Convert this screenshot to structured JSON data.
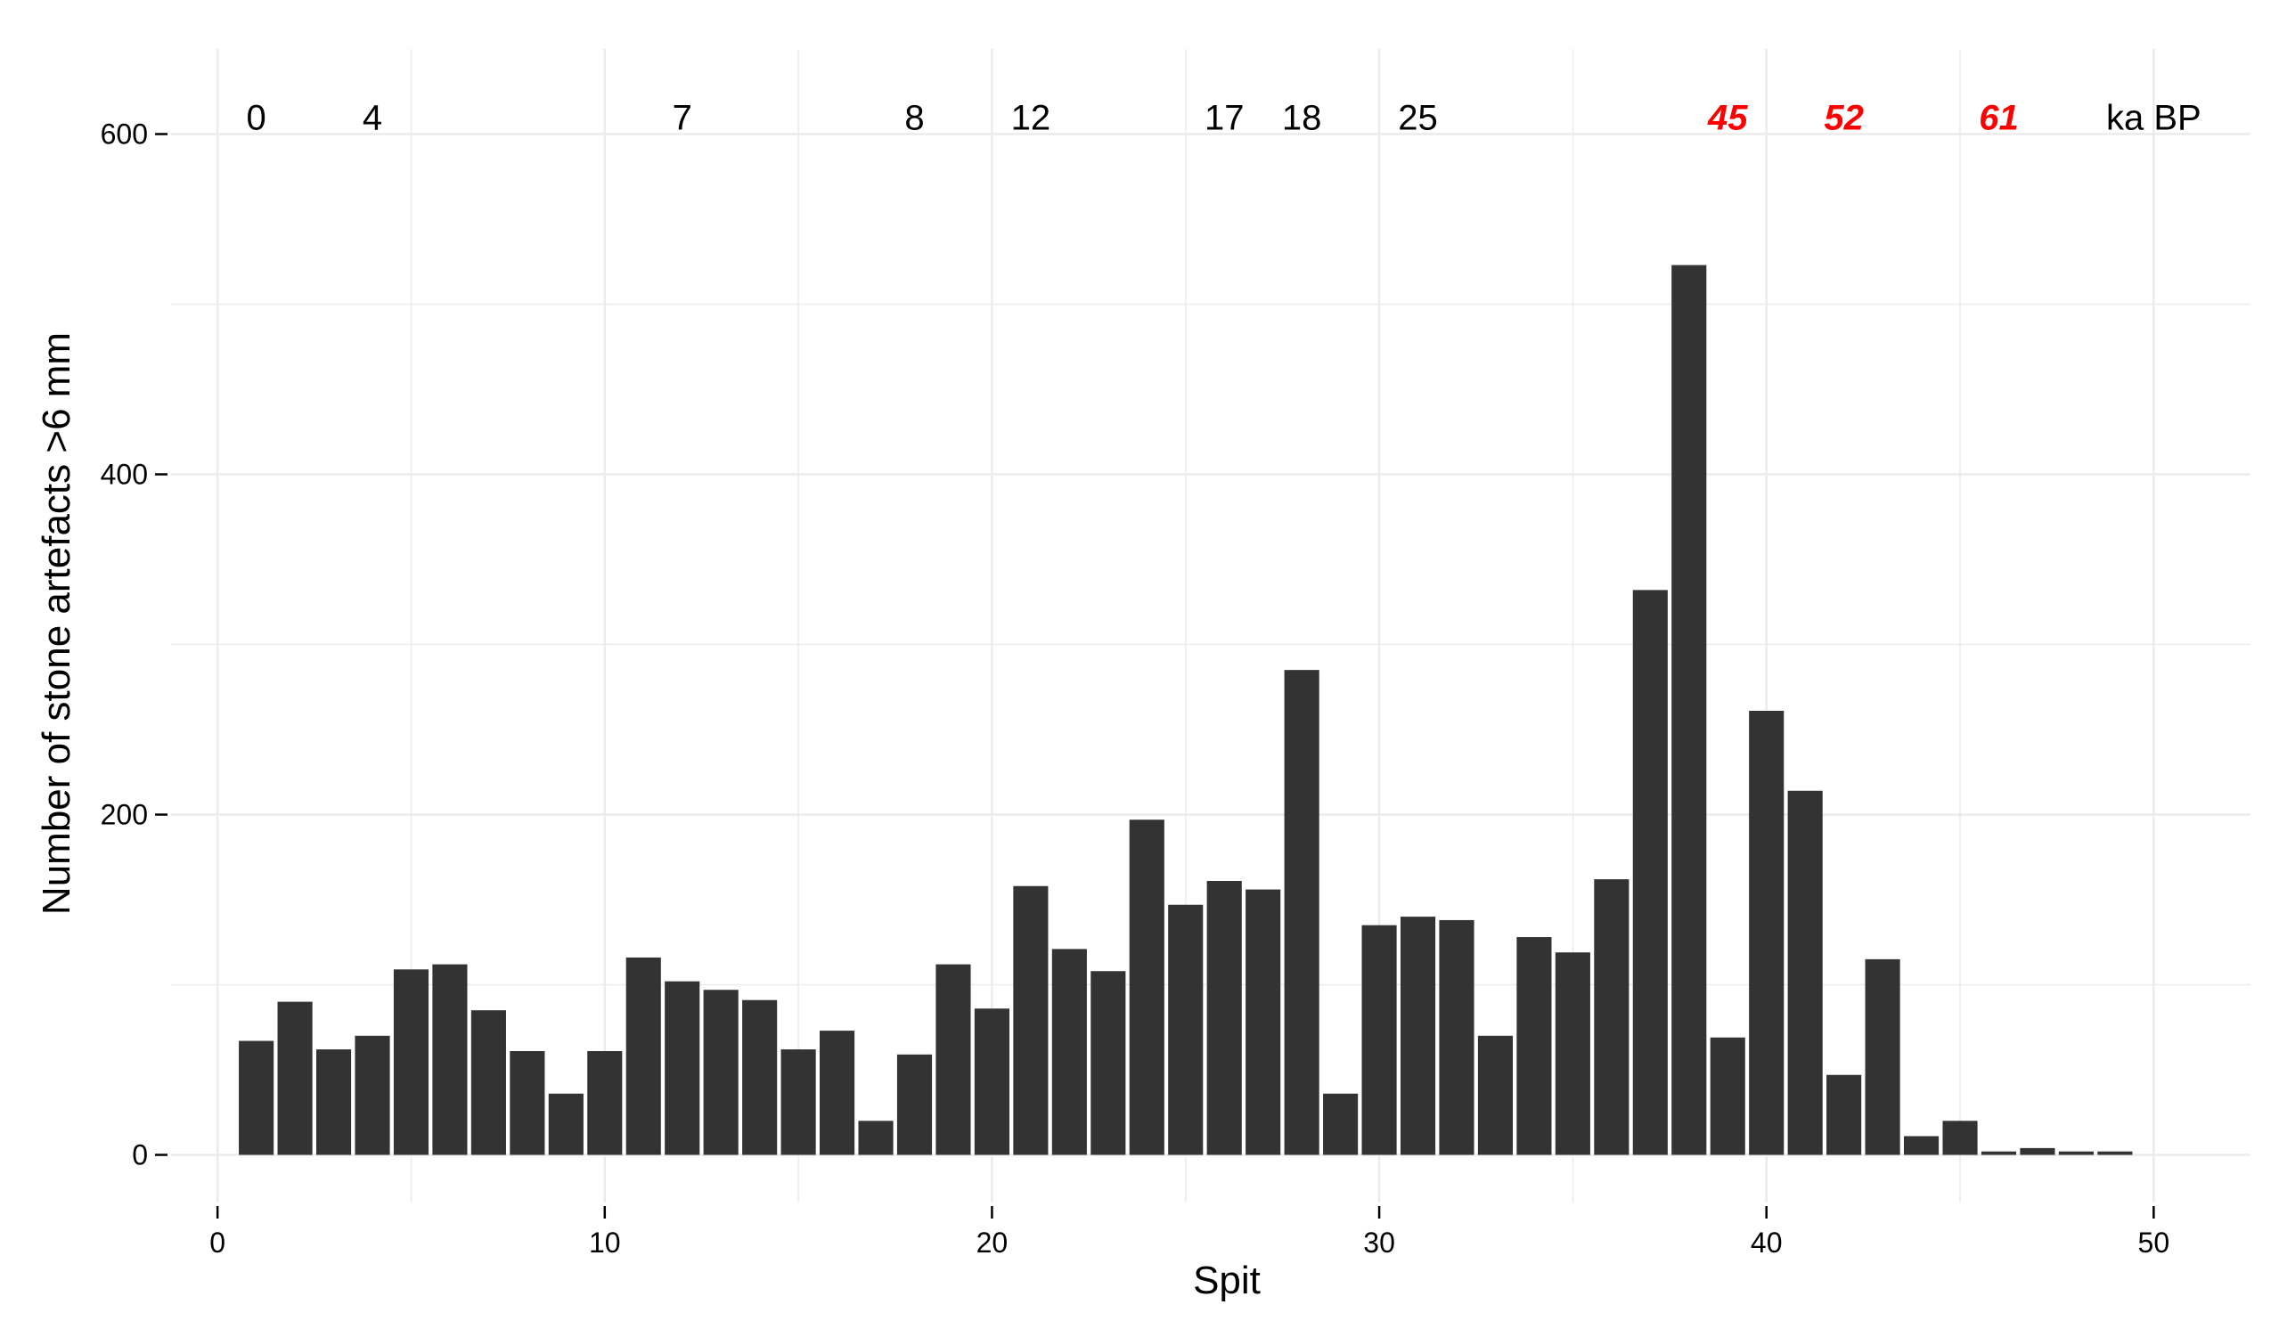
{
  "chart_data": {
    "type": "bar",
    "xlabel": "Spit",
    "ylabel": "Number of stone artefacts >6 mm",
    "xlim": [
      -1.2,
      52.5
    ],
    "ylim": [
      -28,
      650
    ],
    "x_ticks": [
      0,
      10,
      20,
      30,
      40,
      50
    ],
    "y_ticks": [
      0,
      200,
      400,
      600
    ],
    "x_minor_grid": [
      5,
      15,
      25,
      35,
      45
    ],
    "y_minor_grid": [
      100,
      300,
      500
    ],
    "grid": true,
    "bar_color": "#333333",
    "grid_color": "#ebebeb",
    "x": [
      1,
      2,
      3,
      4,
      5,
      6,
      7,
      8,
      9,
      10,
      11,
      12,
      13,
      14,
      15,
      16,
      17,
      18,
      19,
      20,
      21,
      22,
      23,
      24,
      25,
      26,
      27,
      28,
      29,
      30,
      31,
      32,
      33,
      34,
      35,
      36,
      37,
      38,
      39,
      40,
      41,
      42,
      43,
      44,
      45,
      46,
      47,
      48,
      49
    ],
    "values": [
      67,
      90,
      62,
      70,
      109,
      112,
      85,
      61,
      36,
      61,
      116,
      102,
      97,
      91,
      62,
      73,
      20,
      59,
      112,
      86,
      158,
      121,
      108,
      197,
      147,
      161,
      156,
      285,
      36,
      135,
      140,
      138,
      70,
      128,
      119,
      162,
      332,
      523,
      69,
      261,
      214,
      47,
      115,
      11,
      20,
      2,
      4,
      2,
      2
    ],
    "age_annotations": [
      {
        "x": 1,
        "label": "0",
        "red": false
      },
      {
        "x": 4,
        "label": "4",
        "red": false
      },
      {
        "x": 12,
        "label": "7",
        "red": false
      },
      {
        "x": 18,
        "label": "8",
        "red": false
      },
      {
        "x": 21,
        "label": "12",
        "red": false
      },
      {
        "x": 26,
        "label": "17",
        "red": false
      },
      {
        "x": 28,
        "label": "18",
        "red": false
      },
      {
        "x": 31,
        "label": "25",
        "red": false
      },
      {
        "x": 39,
        "label": "45",
        "red": true
      },
      {
        "x": 42,
        "label": "52",
        "red": true
      },
      {
        "x": 46,
        "label": "61",
        "red": true
      },
      {
        "x": 50,
        "label": "ka BP",
        "red": false
      }
    ],
    "age_annotation_y": 610,
    "age_colors": {
      "default": "#000000",
      "highlight": "#ff0000"
    }
  }
}
